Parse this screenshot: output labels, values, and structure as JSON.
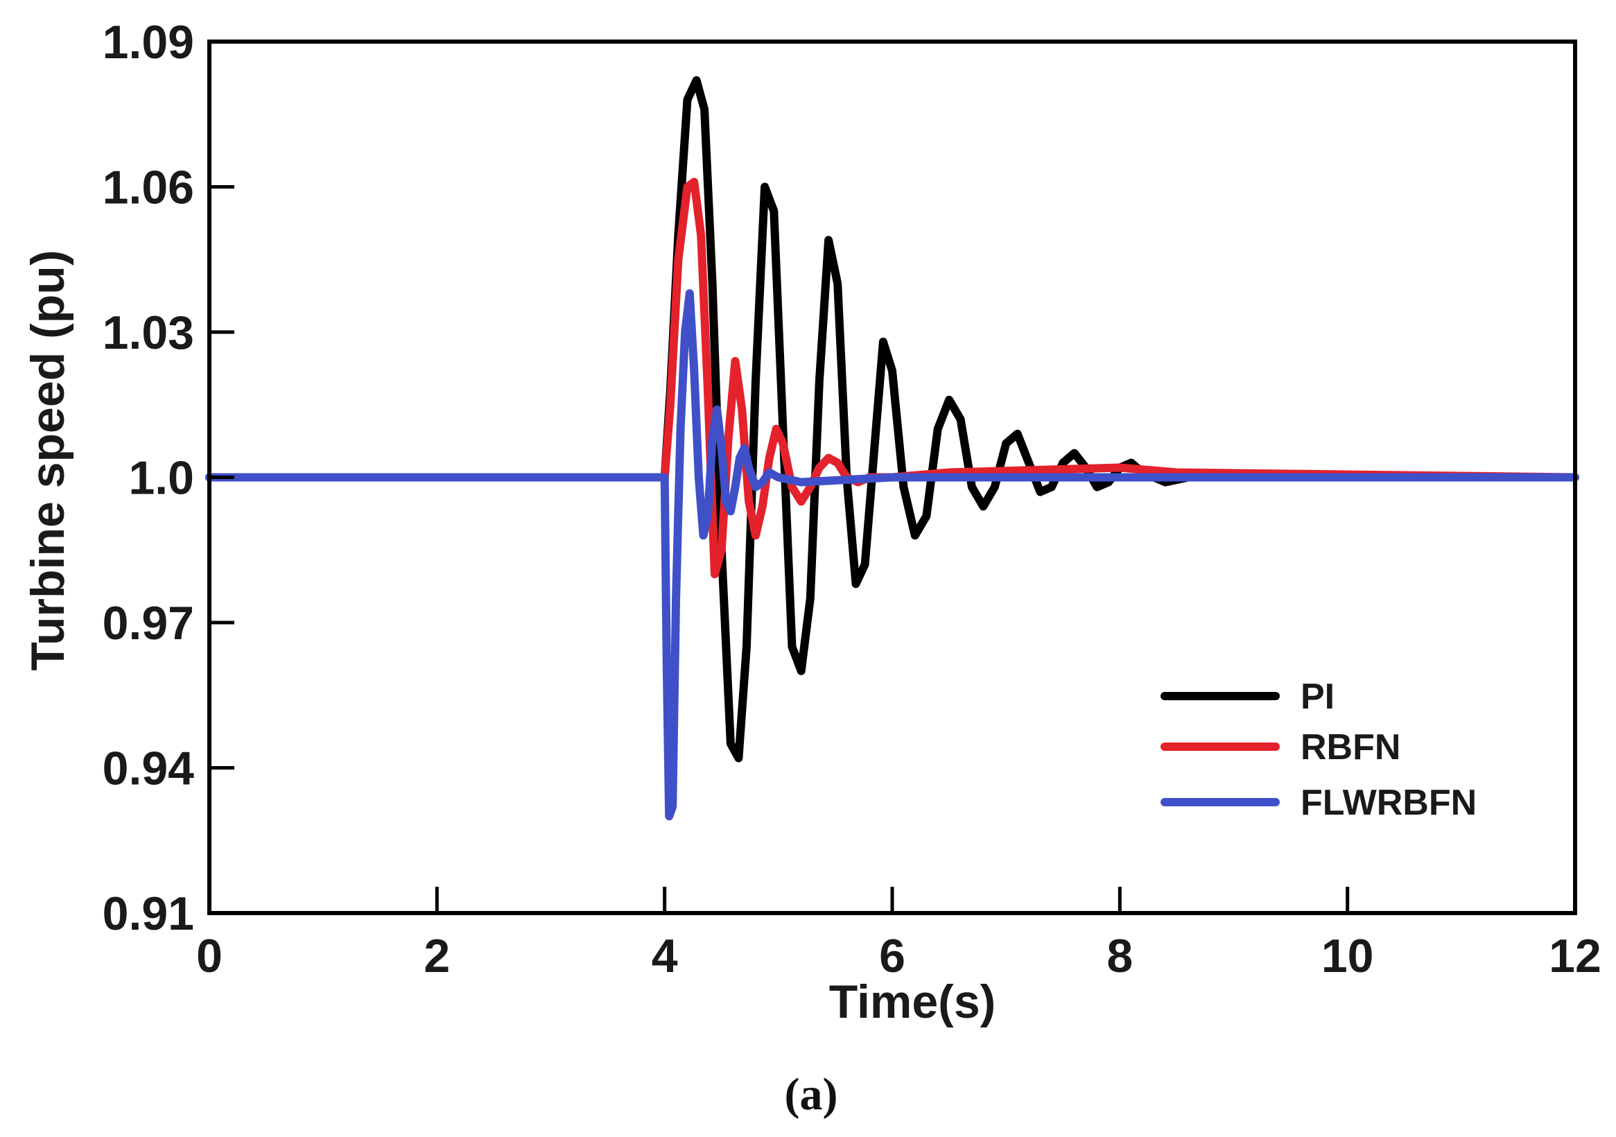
{
  "chart_data": {
    "type": "line",
    "xlabel": "Time(s)",
    "ylabel": "Turbine speed (pu)",
    "xlim": [
      0,
      12
    ],
    "ylim": [
      0.91,
      1.09
    ],
    "x_ticks": [
      0,
      2,
      4,
      6,
      8,
      10,
      12
    ],
    "x_tick_labels": [
      "0",
      "2",
      "4",
      "6",
      "8",
      "10",
      "12"
    ],
    "y_ticks": [
      0.91,
      0.94,
      0.97,
      1.0,
      1.03,
      1.06,
      1.09
    ],
    "y_tick_labels": [
      "0.91",
      "0.94",
      "0.97",
      "1.0",
      "1.03",
      "1.06",
      "1.09"
    ],
    "grid": false,
    "legend_position": "lower-right",
    "caption": "(a)",
    "series": [
      {
        "name": "PI",
        "color": "#000000",
        "x": [
          0,
          4.0,
          4.05,
          4.12,
          4.2,
          4.28,
          4.35,
          4.42,
          4.5,
          4.58,
          4.65,
          4.72,
          4.8,
          4.88,
          4.96,
          5.04,
          5.12,
          5.2,
          5.28,
          5.36,
          5.44,
          5.52,
          5.6,
          5.68,
          5.76,
          5.84,
          5.92,
          6.0,
          6.1,
          6.2,
          6.3,
          6.4,
          6.5,
          6.6,
          6.7,
          6.8,
          6.9,
          7.0,
          7.1,
          7.2,
          7.3,
          7.4,
          7.5,
          7.6,
          7.7,
          7.8,
          7.9,
          8.0,
          8.1,
          8.2,
          8.4,
          8.6,
          9.0,
          12.0
        ],
        "y": [
          1.0,
          1.0,
          1.018,
          1.05,
          1.078,
          1.082,
          1.076,
          1.04,
          0.985,
          0.945,
          0.942,
          0.965,
          1.02,
          1.06,
          1.055,
          1.01,
          0.965,
          0.96,
          0.975,
          1.02,
          1.049,
          1.04,
          1.0,
          0.978,
          0.982,
          1.005,
          1.028,
          1.022,
          0.998,
          0.988,
          0.992,
          1.01,
          1.016,
          1.012,
          0.998,
          0.994,
          0.998,
          1.007,
          1.009,
          1.003,
          0.997,
          0.998,
          1.003,
          1.005,
          1.002,
          0.998,
          0.999,
          1.002,
          1.003,
          1.001,
          0.999,
          1.0,
          1.0,
          1.0
        ]
      },
      {
        "name": "RBFN",
        "color": "#e3222c",
        "x": [
          0,
          4.0,
          4.05,
          4.12,
          4.2,
          4.26,
          4.32,
          4.38,
          4.44,
          4.5,
          4.56,
          4.62,
          4.68,
          4.74,
          4.8,
          4.86,
          4.92,
          4.98,
          5.04,
          5.12,
          5.2,
          5.28,
          5.36,
          5.44,
          5.52,
          5.6,
          5.7,
          5.8,
          6.0,
          6.5,
          8.0,
          8.5,
          12.0
        ],
        "y": [
          1.0,
          1.0,
          1.015,
          1.045,
          1.06,
          1.061,
          1.05,
          1.018,
          0.98,
          0.985,
          1.008,
          1.024,
          1.014,
          0.995,
          0.988,
          0.994,
          1.004,
          1.01,
          1.007,
          0.998,
          0.995,
          0.998,
          1.002,
          1.004,
          1.003,
          1.0,
          0.999,
          1.0,
          1.0,
          1.001,
          1.002,
          1.001,
          1.0
        ]
      },
      {
        "name": "FLWRBFN",
        "color": "#4050c8",
        "x": [
          0,
          4.0,
          4.02,
          4.04,
          4.07,
          4.1,
          4.14,
          4.18,
          4.22,
          4.26,
          4.3,
          4.34,
          4.38,
          4.42,
          4.46,
          4.5,
          4.54,
          4.58,
          4.62,
          4.66,
          4.7,
          4.74,
          4.8,
          4.86,
          4.92,
          5.0,
          5.2,
          6.0,
          12.0
        ],
        "y": [
          1.0,
          1.0,
          0.96,
          0.93,
          0.932,
          0.975,
          1.01,
          1.03,
          1.038,
          1.022,
          1.0,
          0.988,
          0.992,
          1.008,
          1.014,
          1.006,
          0.995,
          0.993,
          0.998,
          1.004,
          1.006,
          1.002,
          0.998,
          0.999,
          1.001,
          1.0,
          0.999,
          1.0,
          1.0
        ]
      }
    ]
  }
}
